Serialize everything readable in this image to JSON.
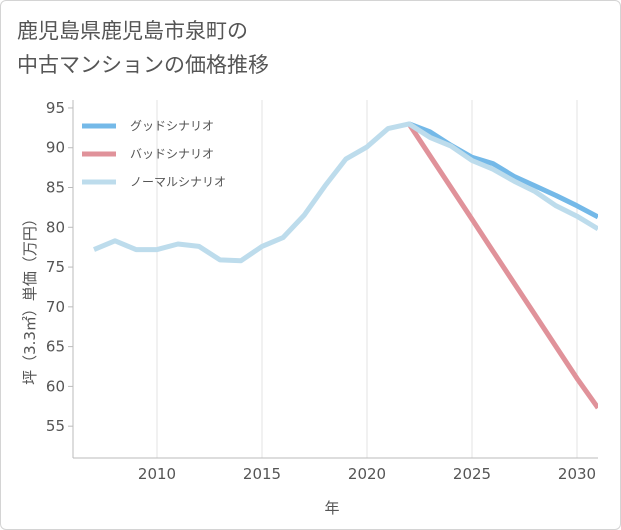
{
  "title_line1": "鹿児島県鹿児島市泉町の",
  "title_line2": "中古マンションの価格推移",
  "chart_data": {
    "type": "line",
    "xlabel": "年",
    "ylabel": "坪（3.3㎡）単価（万円）",
    "xlim": [
      2006,
      2031
    ],
    "ylim": [
      51,
      96
    ],
    "x_ticks": [
      2010,
      2015,
      2020,
      2025,
      2030
    ],
    "y_ticks": [
      55,
      60,
      65,
      70,
      75,
      80,
      85,
      90,
      95
    ],
    "grid": "vertical",
    "legend_position": "top-left",
    "series": [
      {
        "name": "グッドシナリオ",
        "color": "#74b9e8",
        "points": [
          [
            2022,
            93.0
          ],
          [
            2023,
            92.0
          ],
          [
            2024,
            90.3
          ],
          [
            2025,
            88.8
          ],
          [
            2026,
            88.0
          ],
          [
            2027,
            86.4
          ],
          [
            2028,
            85.2
          ],
          [
            2029,
            84.0
          ],
          [
            2030,
            82.7
          ],
          [
            2031,
            81.3
          ]
        ]
      },
      {
        "name": "バッドシナリオ",
        "color": "#e0929a",
        "points": [
          [
            2022,
            93.0
          ],
          [
            2023,
            89.0
          ],
          [
            2024,
            85.0
          ],
          [
            2025,
            81.0
          ],
          [
            2026,
            77.0
          ],
          [
            2027,
            73.0
          ],
          [
            2028,
            69.0
          ],
          [
            2029,
            65.0
          ],
          [
            2030,
            61.0
          ],
          [
            2031,
            57.3
          ]
        ]
      },
      {
        "name": "ノーマルシナリオ",
        "color": "#bddcec",
        "points": [
          [
            2007,
            77.2
          ],
          [
            2008,
            78.3
          ],
          [
            2009,
            77.2
          ],
          [
            2010,
            77.2
          ],
          [
            2011,
            77.9
          ],
          [
            2012,
            77.6
          ],
          [
            2013,
            75.9
          ],
          [
            2014,
            75.8
          ],
          [
            2015,
            77.6
          ],
          [
            2016,
            78.7
          ],
          [
            2017,
            81.5
          ],
          [
            2018,
            85.2
          ],
          [
            2019,
            88.6
          ],
          [
            2020,
            90.1
          ],
          [
            2021,
            92.4
          ],
          [
            2022,
            93.0
          ],
          [
            2023,
            91.3
          ],
          [
            2024,
            90.2
          ],
          [
            2025,
            88.4
          ],
          [
            2026,
            87.3
          ],
          [
            2027,
            85.8
          ],
          [
            2028,
            84.5
          ],
          [
            2029,
            82.7
          ],
          [
            2030,
            81.4
          ],
          [
            2031,
            79.8
          ]
        ]
      }
    ]
  }
}
